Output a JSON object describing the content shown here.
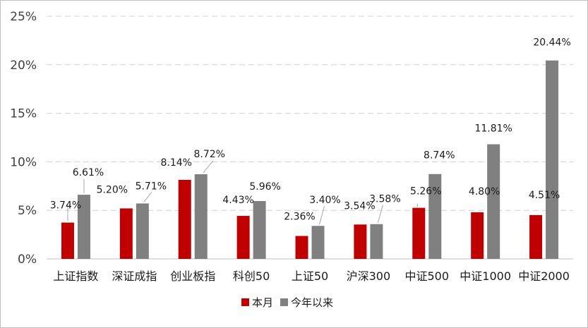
{
  "chart_data": {
    "type": "bar",
    "categories": [
      "上证指数",
      "深证成指",
      "创业板指",
      "科创50",
      "上证50",
      "沪深300",
      "中证500",
      "中证1000",
      "中证2000"
    ],
    "series": [
      {
        "name": "本月",
        "color": "#c00000",
        "values": [
          3.74,
          5.2,
          8.14,
          4.43,
          2.36,
          3.54,
          5.26,
          4.8,
          4.51
        ],
        "labels": [
          "3.74%",
          "5.20%",
          "8.14%",
          "4.43%",
          "2.36%",
          "3.54%",
          "5.26%",
          "4.80%",
          "4.51%"
        ]
      },
      {
        "name": "今年以来",
        "color": "#808080",
        "values": [
          6.61,
          5.71,
          8.72,
          5.96,
          3.4,
          3.58,
          8.74,
          11.81,
          20.44
        ],
        "labels": [
          "6.61%",
          "5.71%",
          "8.72%",
          "5.96%",
          "3.40%",
          "3.58%",
          "8.74%",
          "11.81%",
          "20.44%"
        ]
      }
    ],
    "ylim": [
      0,
      25
    ],
    "yticks": [
      0,
      5,
      10,
      15,
      20,
      25
    ],
    "ytick_labels": [
      "0%",
      "5%",
      "10%",
      "15%",
      "20%",
      "25%"
    ],
    "grid": "horizontal-dashed",
    "legend": "bottom-center",
    "title": "",
    "xlabel": "",
    "ylabel": ""
  }
}
